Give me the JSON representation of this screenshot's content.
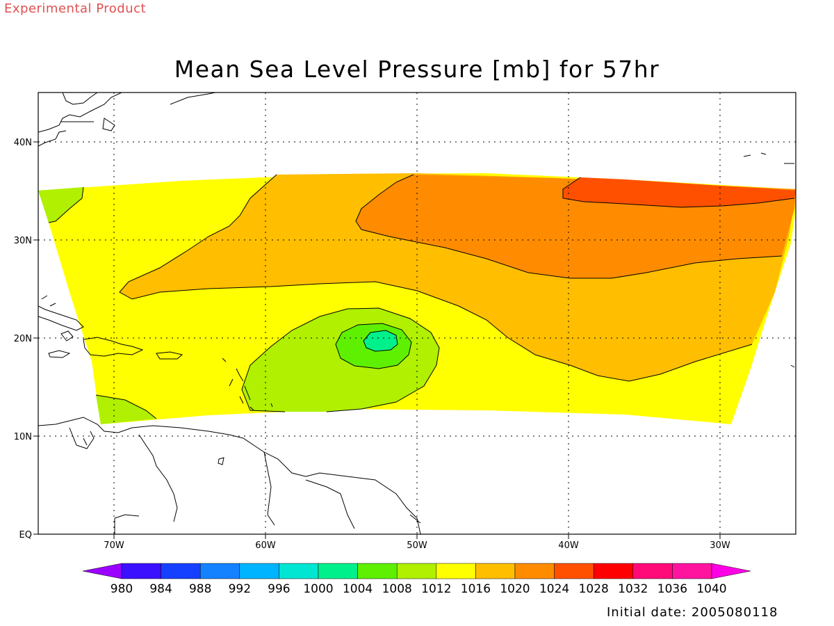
{
  "header": {
    "watermark": "Experimental Product",
    "watermark_color": "#e05050",
    "title": "Mean Sea Level Pressure [mb] for 57hr"
  },
  "axes": {
    "longitude_ticks": [
      "70W",
      "60W",
      "50W",
      "40W",
      "30W"
    ],
    "latitude_ticks": [
      "EQ",
      "10N",
      "20N",
      "30N",
      "40N"
    ],
    "lon_range": [
      -75,
      -25
    ],
    "lat_range": [
      0,
      45
    ],
    "grid": "dotted"
  },
  "colorbar": {
    "labels": [
      "980",
      "984",
      "988",
      "992",
      "996",
      "1000",
      "1004",
      "1008",
      "1012",
      "1016",
      "1020",
      "1024",
      "1028",
      "1032",
      "1036",
      "1040"
    ],
    "colors": [
      "#9a00ff",
      "#3a10ff",
      "#1640ff",
      "#1482ff",
      "#00b4ff",
      "#00e6d2",
      "#00f08c",
      "#5ef000",
      "#b0f000",
      "#ffff00",
      "#ffbe00",
      "#ff8c00",
      "#ff5000",
      "#ff0000",
      "#ff0a78",
      "#ff14a0",
      "#ff00e6"
    ]
  },
  "footer": {
    "initial_date": "Initial date: 2005080118"
  },
  "icons": {
    "colorbar_left": "triangle-left-arrow",
    "colorbar_right": "triangle-right-arrow"
  }
}
